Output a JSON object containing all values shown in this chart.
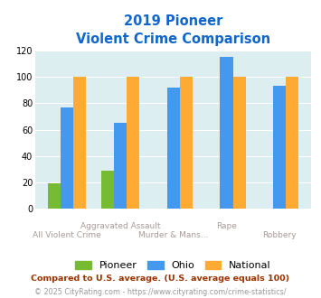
{
  "title_line1": "2019 Pioneer",
  "title_line2": "Violent Crime Comparison",
  "categories": [
    "All Violent Crime",
    "Aggravated Assault",
    "Murder & Mans...",
    "Rape",
    "Robbery"
  ],
  "cat_labels_top": [
    "",
    "Aggravated Assault",
    "",
    "Rape",
    ""
  ],
  "cat_labels_bot": [
    "All Violent Crime",
    "",
    "Murder & Mans...",
    "",
    "Robbery"
  ],
  "pioneer_values": [
    19,
    29,
    0,
    0,
    0
  ],
  "ohio_values": [
    77,
    65,
    92,
    115,
    93
  ],
  "national_values": [
    100,
    100,
    100,
    100,
    100
  ],
  "pioneer_color": "#77bb33",
  "ohio_color": "#4499ee",
  "national_color": "#ffaa33",
  "bg_color": "#ddeef0",
  "title_color": "#1166cc",
  "label_color": "#aa9999",
  "ylim": [
    0,
    120
  ],
  "yticks": [
    0,
    20,
    40,
    60,
    80,
    100,
    120
  ],
  "footnote1": "Compared to U.S. average. (U.S. average equals 100)",
  "footnote2": "© 2025 CityRating.com - https://www.cityrating.com/crime-statistics/",
  "footnote1_color": "#993300",
  "footnote2_color": "#999999",
  "legend_labels": [
    "Pioneer",
    "Ohio",
    "National"
  ]
}
